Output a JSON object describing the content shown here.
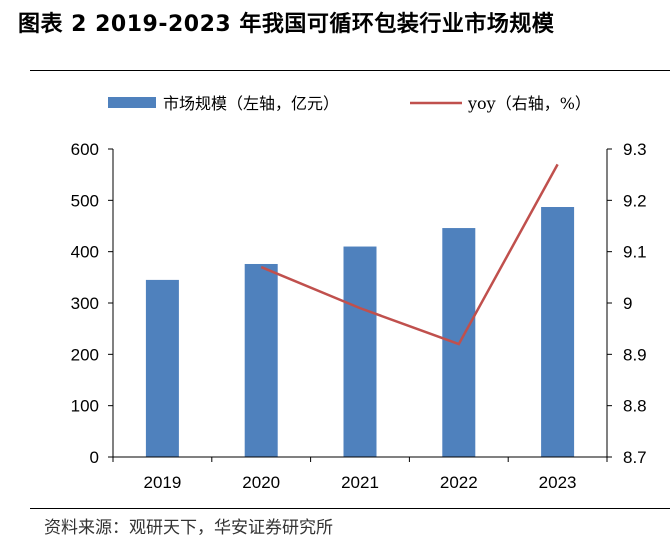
{
  "figure": {
    "title": "图表 2 2019-2023 年我国可循环包装行业市场规模",
    "source": "资料来源：观研天下，华安证券研究所"
  },
  "chart_data": {
    "type": "bar",
    "categories": [
      "2019",
      "2020",
      "2021",
      "2022",
      "2023"
    ],
    "series": [
      {
        "name": "市场规模（左轴，亿元）",
        "kind": "bar",
        "axis": "left",
        "color": "#4f81bd",
        "values": [
          345,
          376,
          410,
          446,
          487
        ]
      },
      {
        "name": "yoy（右轴，%）",
        "kind": "line",
        "axis": "right",
        "color": "#c0504d",
        "values": [
          null,
          9.07,
          8.99,
          8.92,
          9.27
        ]
      }
    ],
    "ylim_left": [
      0,
      600
    ],
    "yticks_left": [
      "0",
      "100",
      "200",
      "300",
      "400",
      "500",
      "600"
    ],
    "ylim_right": [
      8.7,
      9.3
    ],
    "yticks_right": [
      "8.7",
      "8.8",
      "8.9",
      "9",
      "9.1",
      "9.2",
      "9.3"
    ],
    "legend_position": "top",
    "grid": false
  }
}
